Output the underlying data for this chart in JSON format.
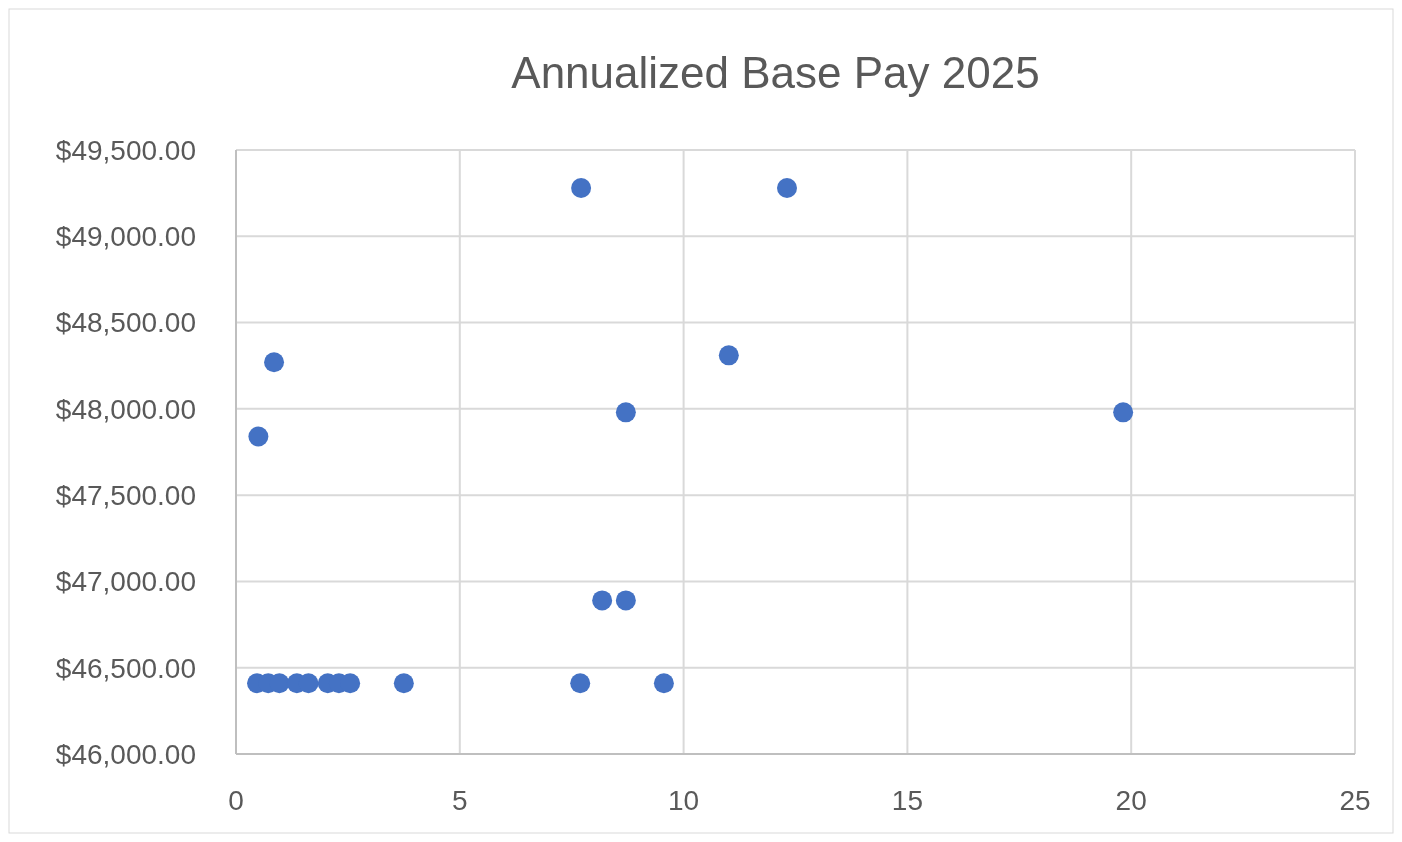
{
  "chart_data": {
    "type": "scatter",
    "title": "Annualized Base Pay 2025",
    "x": [
      0.5,
      0.85,
      7.71,
      12.31,
      11.01,
      8.71,
      19.82,
      8.18,
      8.71,
      0.47,
      0.72,
      0.97,
      1.36,
      1.62,
      2.05,
      2.3,
      2.55,
      3.75,
      7.69,
      9.56
    ],
    "values": [
      47840,
      48270,
      49280,
      49280,
      48310,
      47980,
      47980,
      46890,
      46890,
      46410,
      46410,
      46410,
      46410,
      46410,
      46410,
      46410,
      46410,
      46410,
      46410,
      46410
    ],
    "color": "#4472c4",
    "marker": "circle",
    "xlim": [
      0,
      25
    ],
    "xticks": [
      0,
      5,
      10,
      15,
      20,
      25
    ],
    "ylim": [
      46000,
      49500
    ],
    "yticks": [
      {
        "value": 46000,
        "label": "$46,000.00"
      },
      {
        "value": 46500,
        "label": "$46,500.00"
      },
      {
        "value": 47000,
        "label": "$47,000.00"
      },
      {
        "value": 47500,
        "label": "$47,500.00"
      },
      {
        "value": 48000,
        "label": "$48,000.00"
      },
      {
        "value": 48500,
        "label": "$48,500.00"
      },
      {
        "value": 49000,
        "label": "$49,000.00"
      },
      {
        "value": 49500,
        "label": "$49,500.00"
      }
    ],
    "grid": true
  }
}
